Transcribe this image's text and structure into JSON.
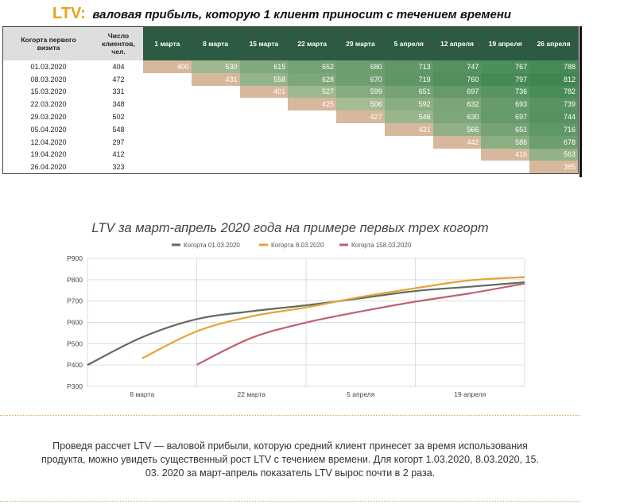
{
  "title": {
    "ltv": "LTV:",
    "rest": "валовая прибыль, которую 1 клиент приносит с течением времени"
  },
  "table": {
    "headers": {
      "cohort": [
        "Когорта первого",
        "визита"
      ],
      "clients": [
        "Число",
        "клиентов,",
        "чел."
      ],
      "dates": [
        "1 марта",
        "8 марта",
        "15 марта",
        "22 марта",
        "29 марта",
        "5 апреля",
        "12 апреля",
        "19 апреля",
        "26 апреля"
      ]
    },
    "rows": [
      {
        "cohort": "01.03.2020",
        "clients": "404",
        "values": [
          "400",
          "530",
          "615",
          "652",
          "680",
          "713",
          "747",
          "767",
          "788"
        ]
      },
      {
        "cohort": "08.03.2020",
        "clients": "472",
        "values": [
          "",
          "431",
          "558",
          "628",
          "670",
          "719",
          "760",
          "797",
          "812"
        ]
      },
      {
        "cohort": "15.03.2020",
        "clients": "331",
        "values": [
          "",
          "",
          "401",
          "527",
          "599",
          "651",
          "697",
          "736",
          "782"
        ]
      },
      {
        "cohort": "22.03.2020",
        "clients": "348",
        "values": [
          "",
          "",
          "",
          "425",
          "506",
          "592",
          "632",
          "693",
          "739"
        ]
      },
      {
        "cohort": "29.03.2020",
        "clients": "502",
        "values": [
          "",
          "",
          "",
          "",
          "427",
          "546",
          "630",
          "697",
          "744"
        ]
      },
      {
        "cohort": "05.04.2020",
        "clients": "548",
        "values": [
          "",
          "",
          "",
          "",
          "",
          "431",
          "566",
          "651",
          "716"
        ]
      },
      {
        "cohort": "12.04.2020",
        "clients": "297",
        "values": [
          "",
          "",
          "",
          "",
          "",
          "",
          "442",
          "586",
          "678"
        ]
      },
      {
        "cohort": "19.04.2020",
        "clients": "412",
        "values": [
          "",
          "",
          "",
          "",
          "",
          "",
          "",
          "416",
          "563"
        ]
      },
      {
        "cohort": "26.04.2020",
        "clients": "323",
        "values": [
          "",
          "",
          "",
          "",
          "",
          "",
          "",
          "",
          "385"
        ]
      }
    ],
    "colors": {
      "header_gray": "#dedede",
      "header_dark": "#2c5a42",
      "first_value": "#d7b89c",
      "value_low": "#c4cba6",
      "value_high": "#3f8653"
    }
  },
  "chart_data": {
    "type": "line",
    "title": "LTV за март-апрель 2020 года на примере первых трех когорт",
    "x_tick_labels": [
      "8 марта",
      "22 марта",
      "5 апреля",
      "19 апреля"
    ],
    "y_tick_labels": [
      "Р300",
      "Р400",
      "Р500",
      "Р600",
      "Р700",
      "Р800",
      "Р900"
    ],
    "x": [
      "1 марта",
      "8 марта",
      "15 марта",
      "22 марта",
      "29 марта",
      "5 апреля",
      "12 апреля",
      "19 апреля",
      "26 апреля"
    ],
    "ylim": [
      300,
      900
    ],
    "grid": true,
    "legend_position": "top",
    "series": [
      {
        "name": "Когорта 01.03.2020",
        "color": "#5e6b63",
        "values": [
          400,
          530,
          615,
          652,
          680,
          713,
          747,
          767,
          788
        ]
      },
      {
        "name": "Когорта 8.03.2020",
        "color": "#e3a535",
        "values": [
          null,
          431,
          558,
          628,
          670,
          719,
          760,
          797,
          812
        ]
      },
      {
        "name": "Когорта 158.03.2020",
        "color": "#c0606e",
        "values": [
          null,
          null,
          401,
          527,
          599,
          651,
          697,
          736,
          782
        ]
      }
    ]
  },
  "summary": [
    "Проведя рассчет LTV — валовой прибыли, которую средний клиент принесет за время использования",
    "продукта, можно увидеть существенный рост LTV с течением времени.  Для когорт 1.03.2020, 8.03.2020, 15.",
    "03. 2020 за март-апрель показатель LTV вырос почти в 2 раза."
  ]
}
